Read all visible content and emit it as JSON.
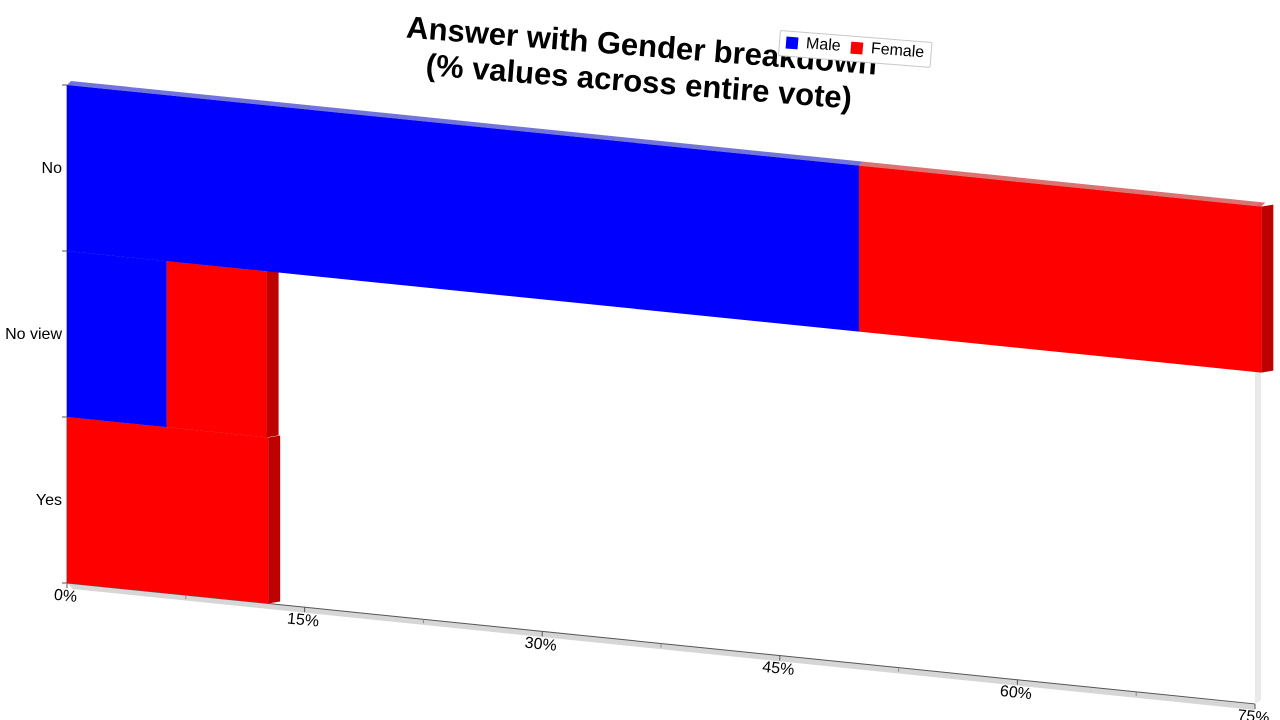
{
  "chart_data": {
    "type": "bar",
    "orientation": "horizontal",
    "stacked": true,
    "three_d": true,
    "title": [
      "Answer with Gender breakdown",
      "(% values across entire vote)"
    ],
    "categories": [
      "No",
      "No view",
      "Yes"
    ],
    "series": [
      {
        "name": "Male",
        "color": "#0000ff",
        "values": [
          50,
          6.3,
          0
        ]
      },
      {
        "name": "Female",
        "color": "#ff0000",
        "values": [
          25.4,
          6.3,
          12.7
        ]
      }
    ],
    "xlim": [
      0,
      75
    ],
    "xticks": [
      "0%",
      "15%",
      "30%",
      "45%",
      "60%",
      "75%"
    ],
    "legend_position": "top-right",
    "grid": false
  }
}
